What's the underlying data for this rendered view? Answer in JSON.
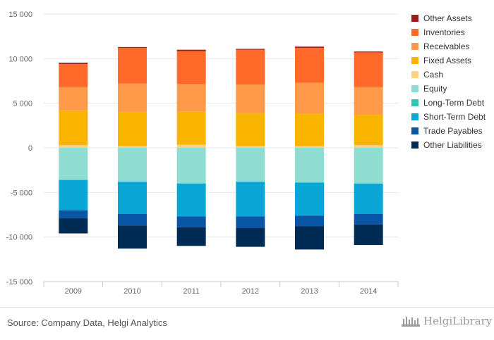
{
  "chart_data": {
    "type": "bar",
    "stacked": true,
    "categories": [
      "2009",
      "2010",
      "2011",
      "2012",
      "2013",
      "2014"
    ],
    "ylim": [
      -15000,
      15000
    ],
    "yticks": [
      15000,
      10000,
      5000,
      0,
      -5000,
      -10000,
      -15000
    ],
    "ytick_labels": [
      "15 000",
      "10 000",
      "5 000",
      "0",
      "-5 000",
      "-10 000",
      "-15 000"
    ],
    "grid": true,
    "legend_position": "right",
    "series": [
      {
        "name": "Other Assets",
        "color": "#a31a1a",
        "values": [
          150,
          100,
          150,
          100,
          150,
          100
        ]
      },
      {
        "name": "Inventories",
        "color": "#ff6a2b",
        "values": [
          2600,
          4000,
          3700,
          3900,
          3900,
          3900
        ]
      },
      {
        "name": "Receivables",
        "color": "#ff9a4a",
        "values": [
          2600,
          3200,
          3100,
          3200,
          3500,
          3100
        ]
      },
      {
        "name": "Fixed Assets",
        "color": "#f9b400",
        "values": [
          3900,
          3800,
          3700,
          3700,
          3600,
          3400
        ]
      },
      {
        "name": "Cash",
        "color": "#ffd27f",
        "values": [
          300,
          200,
          350,
          200,
          200,
          300
        ]
      },
      {
        "name": "Equity",
        "color": "#8fdcd0",
        "values": [
          -3600,
          -3800,
          -4000,
          -3800,
          -3900,
          -4000
        ]
      },
      {
        "name": "Long-Term Debt",
        "color": "#2dc7b2",
        "values": [
          0,
          0,
          0,
          0,
          0,
          0
        ]
      },
      {
        "name": "Short-Term Debt",
        "color": "#09a6d6",
        "values": [
          -3400,
          -3600,
          -3700,
          -3900,
          -3700,
          -3400
        ]
      },
      {
        "name": "Trade Payables",
        "color": "#0a56a6",
        "values": [
          -900,
          -1300,
          -1200,
          -1300,
          -1200,
          -1200
        ]
      },
      {
        "name": "Other Liabilities",
        "color": "#002b55",
        "values": [
          -1700,
          -2600,
          -2100,
          -2100,
          -2600,
          -2300
        ]
      }
    ]
  },
  "footer": {
    "source": "Source: Company Data, Helgi Analytics",
    "logo_text": "HelgiLibrary"
  }
}
